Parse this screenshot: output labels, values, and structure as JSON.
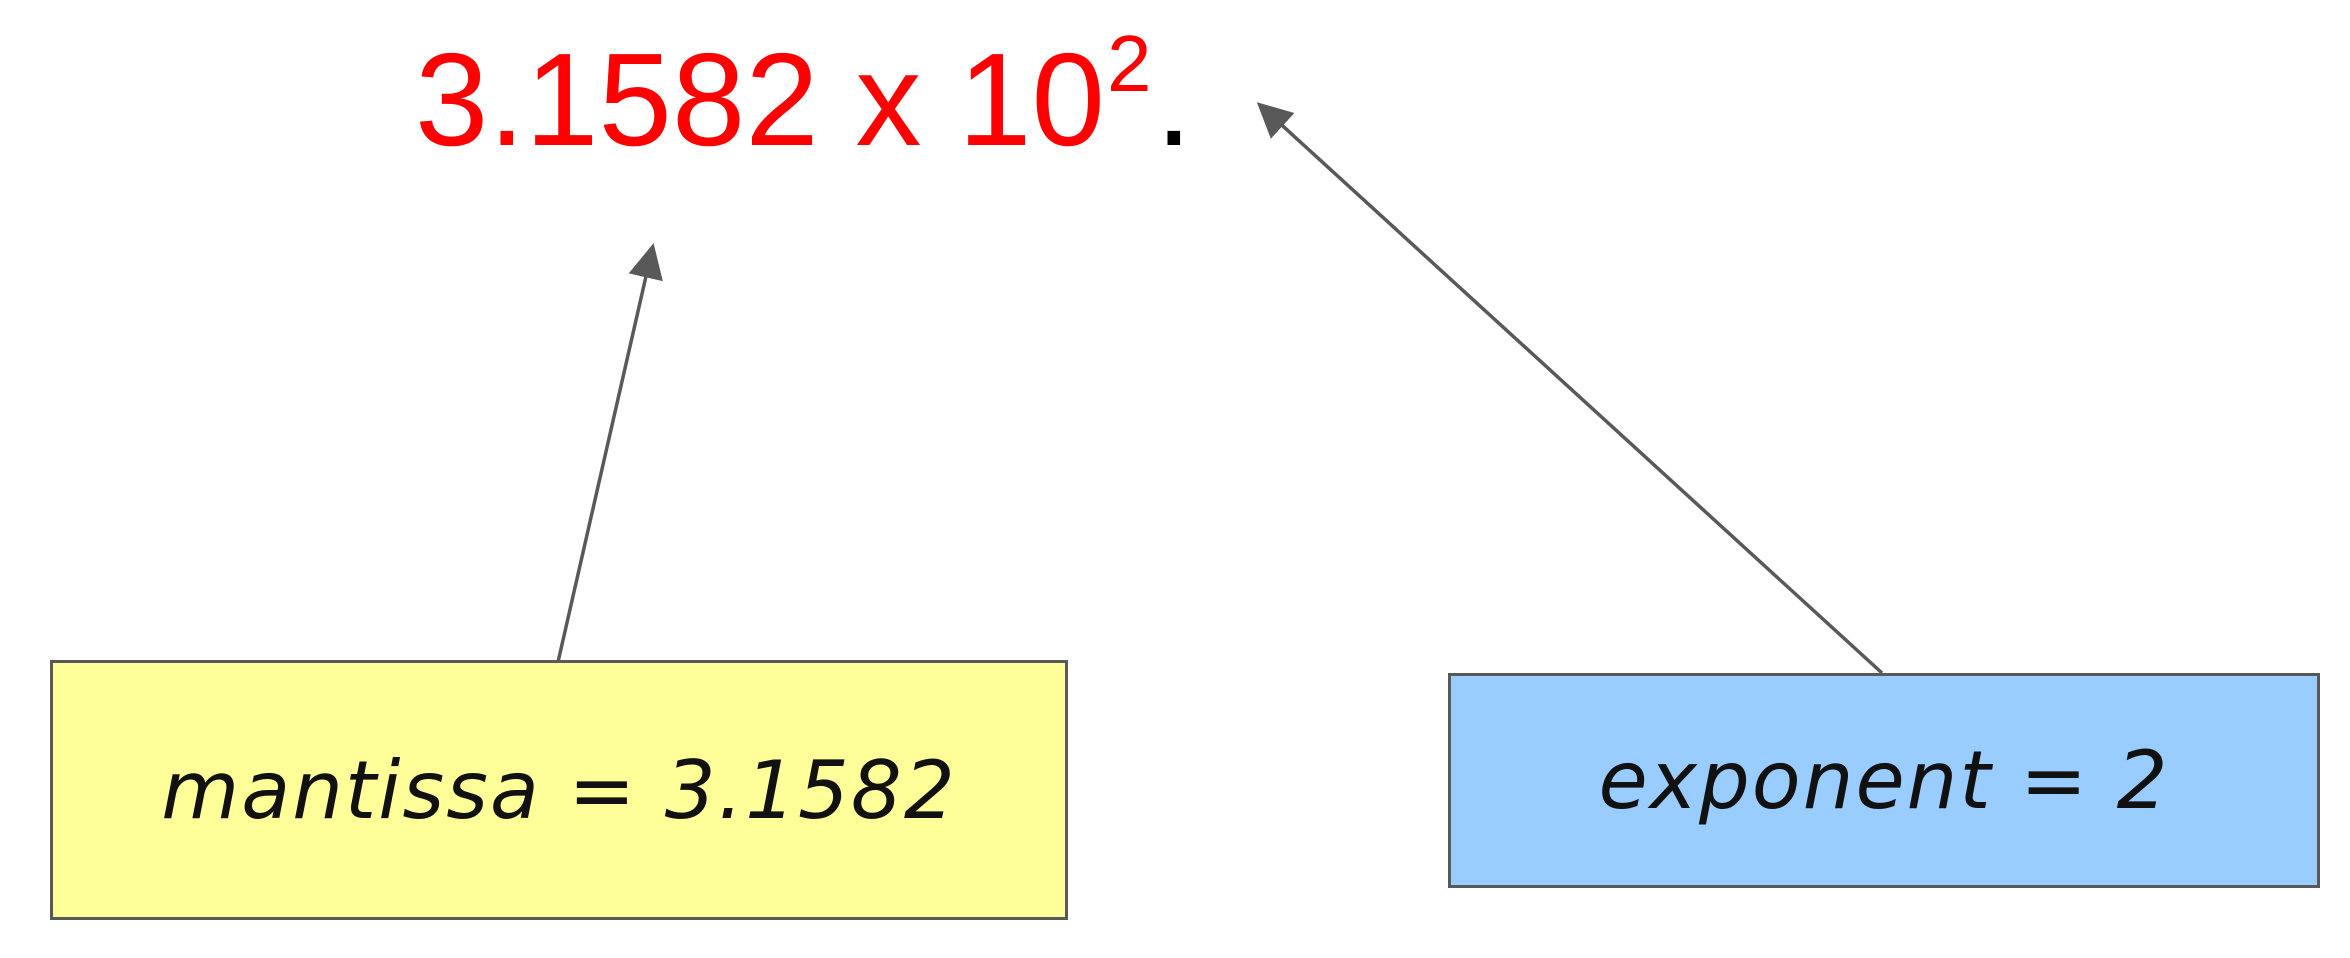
{
  "formula": {
    "mantissa_text": "3.1582",
    "times_text": "x",
    "base_text": "10",
    "exponent_text": "2",
    "trailing_text": ".",
    "color": "#ff0000",
    "trailing_color": "#000000"
  },
  "callouts": {
    "mantissa_label": "mantissa = 3.1582",
    "mantissa_fill": "#ffff99",
    "exponent_label": "exponent = 2",
    "exponent_fill": "#99ccff",
    "border_color": "#595959"
  },
  "connectors": {
    "color": "#595959",
    "arrow_head": "filled-triangle"
  }
}
